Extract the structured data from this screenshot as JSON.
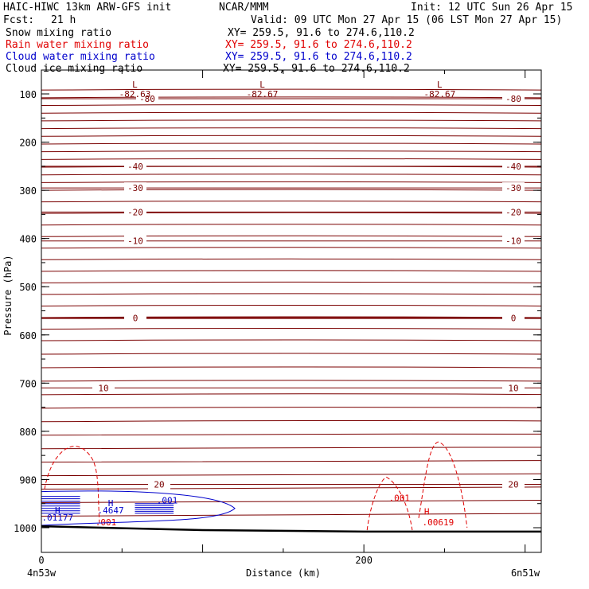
{
  "header": {
    "line1_left": "HAIC-HIWC 13km ARW-GFS init",
    "line1_mid": "NCAR/MMM",
    "line1_right": "Init: 12 UTC Sun 26 Apr 15",
    "fcst_label": "Fcst:",
    "fcst_value": "21 h",
    "valid": "Valid: 09 UTC Mon 27 Apr 15 (06 LST Mon 27 Apr 15)"
  },
  "fields": [
    {
      "name": "Snow mixing ratio",
      "xy": "XY= 259.5, 91.6 to 274.6,110.2",
      "color": "#000000"
    },
    {
      "name": "Rain water mixing ratio",
      "xy": "XY= 259.5, 91.6 to 274.6,110.2",
      "color": "#e00000"
    },
    {
      "name": "Cloud water mixing ratio",
      "xy": "XY= 259.5, 91.6 to 274.6,110.2",
      "color": "#0000cc"
    },
    {
      "name": "Cloud ice mixing ratio",
      "xy": "XY= 259.5, 91.6 to 274.6,110.2",
      "color": "#000000"
    }
  ],
  "chart_data": {
    "type": "contour",
    "xlabel": "Distance (km)",
    "ylabel": "Pressure (hPa)",
    "xlim": [
      0,
      310
    ],
    "ylim": [
      1050,
      60
    ],
    "x_ticks": [
      0,
      200
    ],
    "y_ticks": [
      100,
      200,
      300,
      400,
      500,
      600,
      700,
      800,
      900,
      1000
    ],
    "x_endpoints": [
      "4n53w",
      "6n51w"
    ],
    "temperature_contours": [
      {
        "value": -80,
        "label": "-80",
        "p": 110
      },
      {
        "value": -40,
        "label": "-40",
        "p": 250
      },
      {
        "value": -30,
        "label": "-30",
        "p": 295
      },
      {
        "value": -20,
        "label": "-20",
        "p": 345
      },
      {
        "value": -10,
        "label": "-10",
        "p": 405
      },
      {
        "value": 0,
        "label": "0",
        "p": 565
      },
      {
        "value": 10,
        "label": "10",
        "p": 710
      },
      {
        "value": 20,
        "label": "20",
        "p": 910
      }
    ],
    "temperature_minima": [
      {
        "symbol": "L",
        "label": "-82.63",
        "x": 58
      },
      {
        "symbol": "L",
        "label": "-82.67",
        "x": 137
      },
      {
        "symbol": "L",
        "label": "-82.67",
        "x": 247
      }
    ],
    "rain_labels": [
      {
        "label": ".001",
        "x": 40,
        "p": 995
      },
      {
        "label": ".001",
        "x": 222,
        "p": 945
      },
      {
        "label": ".00619",
        "x": 246,
        "p": 995
      },
      {
        "label": "H",
        "x": 239,
        "p": 973
      }
    ],
    "cloud_water_labels": [
      {
        "label": "H",
        "x": 43,
        "p": 955
      },
      {
        "label": ".4647",
        "x": 43,
        "p": 970
      },
      {
        "label": ".001",
        "x": 78,
        "p": 950
      },
      {
        "label": "H",
        "x": 10,
        "p": 970
      },
      {
        "label": ".01177",
        "x": 10,
        "p": 985
      }
    ],
    "surface_pressure": [
      {
        "x": 0,
        "p": 997
      },
      {
        "x": 100,
        "p": 1005
      },
      {
        "x": 200,
        "p": 1008
      },
      {
        "x": 310,
        "p": 1008
      }
    ]
  }
}
